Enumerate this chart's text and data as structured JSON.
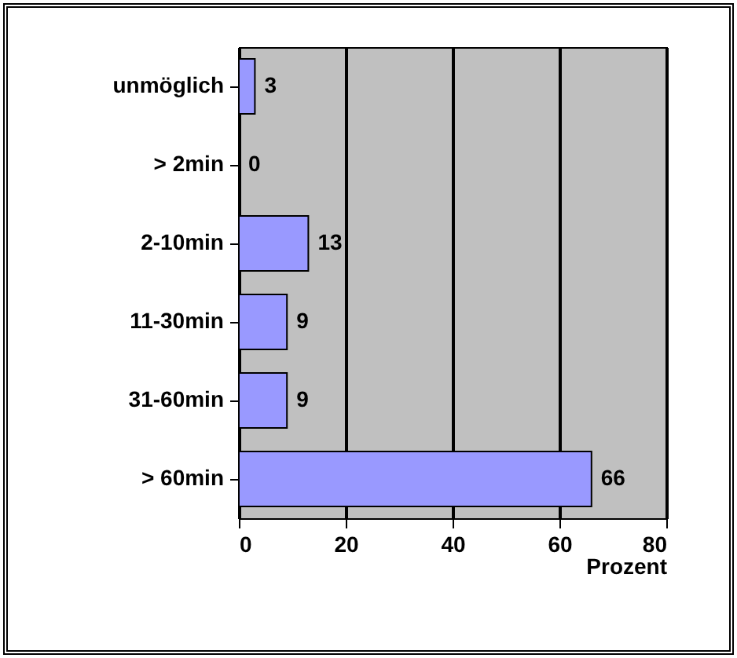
{
  "chart_data": {
    "type": "bar",
    "orientation": "horizontal",
    "xlabel": "Prozent",
    "categories": [
      "unmöglich",
      "> 2min",
      "2-10min",
      "11-30min",
      "31-60min",
      "> 60min"
    ],
    "values": [
      3,
      0,
      13,
      9,
      9,
      66
    ],
    "color": "#9999ff",
    "xlim": [
      0,
      80
    ],
    "xticks": [
      0,
      20,
      40,
      60,
      80
    ],
    "grid": "x",
    "data_labels": true
  }
}
